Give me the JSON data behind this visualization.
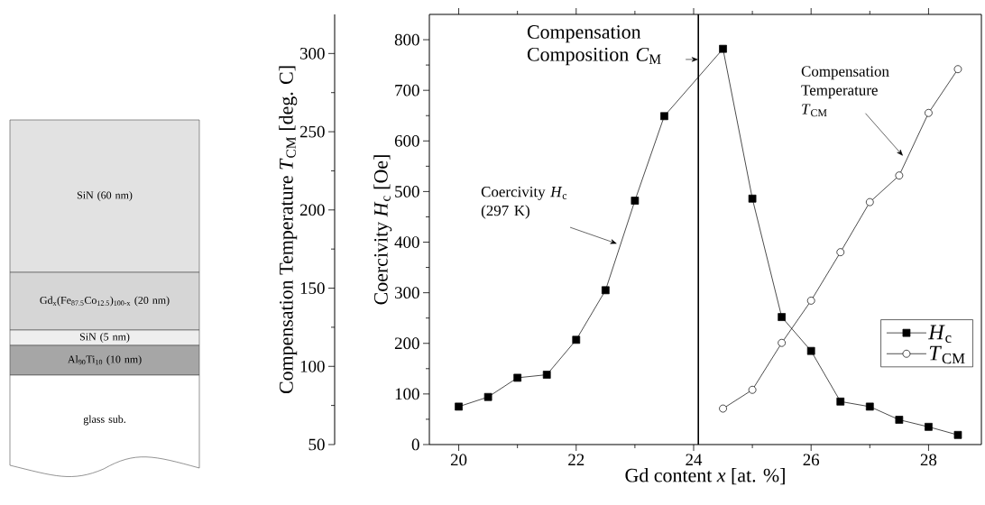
{
  "chart_data": {
    "type": "line",
    "xlabel": "Gd content *x* [at. %]",
    "ylabel": "Coercivity *H*$_{c}$ [Oe]",
    "y2label": "Compensation Temperature *T*$_{CM}$ [deg. C]",
    "x": [
      20,
      20.5,
      21,
      21.5,
      22,
      22.5,
      23,
      23.5,
      24.5,
      25,
      25.5,
      26,
      26.5,
      27,
      27.5,
      28,
      28.5
    ],
    "series": [
      {
        "name": "*H*$_{c}$",
        "color": "#000000",
        "marker": "square",
        "values": [
          75,
          94,
          132,
          138,
          207,
          305,
          482,
          649,
          782,
          486,
          252,
          185,
          85,
          75,
          49,
          35,
          19
        ]
      },
      {
        "name": "*T*$_{CM}$",
        "color": "#000000",
        "marker": "circle",
        "axis": "y2",
        "x": [
          24.5,
          25,
          25.5,
          26,
          26.5,
          27,
          27.5,
          28,
          28.5
        ],
        "values": [
          73,
          85,
          115,
          142,
          173,
          205,
          222,
          262,
          290
        ]
      }
    ],
    "xlim": [
      19.5,
      28.9
    ],
    "xticks": [
      20,
      22,
      24,
      26,
      28
    ],
    "ylim": [
      0,
      850
    ],
    "yticks": [
      0,
      100,
      200,
      300,
      400,
      500,
      600,
      700,
      800
    ],
    "y2lim": [
      50,
      325
    ],
    "y2ticks": [
      50,
      100,
      150,
      200,
      250,
      300
    ],
    "ref_lines": [
      {
        "axis": "x",
        "value": 24.08,
        "label": "Compensation Composition *C*$_{M}$",
        "color": "#000000"
      }
    ],
    "annotations": [
      "Coercivity *H*$_{c}$ (297 K)",
      "Compensation Temperature *T*$_{CM}$",
      "SiN (60 nm)",
      "Gd$_{x}$(Fe$_{87.5}$Co$_{12.5}$)$_{100-x}$ (20 nm)",
      "SiN (5 nm)",
      "Al$_{90}$Ti$_{10}$ (10 nm)",
      "glass sub."
    ],
    "legend": "bottom right",
    "grid": false
  }
}
